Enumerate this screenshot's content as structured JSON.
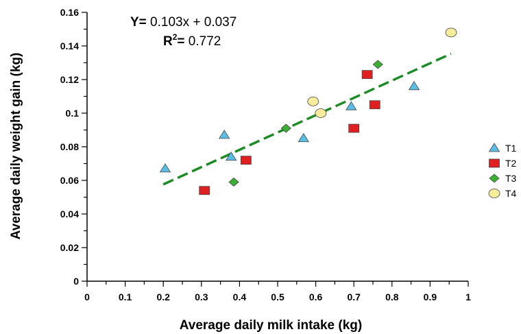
{
  "chart_data": {
    "type": "scatter",
    "title": "",
    "xlabel": "Average daily milk intake (kg)",
    "ylabel": "Average daily weight gain (kg)",
    "xlim": [
      0,
      1
    ],
    "ylim": [
      0,
      0.16
    ],
    "x_ticks": [
      "0",
      "0.1",
      "0.2",
      "0.3",
      "0.4",
      "0.5",
      "0.6",
      "0.7",
      "0.8",
      "0.9",
      "1"
    ],
    "y_ticks": [
      "0",
      "0.02",
      "0.04",
      "0.06",
      "0.08",
      "0.1",
      "0.12",
      "0.14",
      "0.16"
    ],
    "grid": false,
    "legend_position": "right",
    "series": [
      {
        "name": "T1",
        "marker": "triangle",
        "color": "#5bbce4",
        "points": [
          [
            0.205,
            0.067
          ],
          [
            0.36,
            0.087
          ],
          [
            0.378,
            0.074
          ],
          [
            0.568,
            0.085
          ],
          [
            0.693,
            0.104
          ],
          [
            0.858,
            0.116
          ]
        ]
      },
      {
        "name": "T2",
        "marker": "square",
        "color": "#e02020",
        "points": [
          [
            0.308,
            0.054
          ],
          [
            0.417,
            0.072
          ],
          [
            0.7,
            0.091
          ],
          [
            0.735,
            0.123
          ],
          [
            0.755,
            0.105
          ]
        ]
      },
      {
        "name": "T3",
        "marker": "diamond",
        "color": "#3cb034",
        "points": [
          [
            0.385,
            0.059
          ],
          [
            0.522,
            0.091
          ],
          [
            0.763,
            0.129
          ]
        ]
      },
      {
        "name": "T4",
        "marker": "circle",
        "color": "#f7eb9c",
        "points": [
          [
            0.593,
            0.107
          ],
          [
            0.613,
            0.1
          ],
          [
            0.955,
            0.148
          ]
        ]
      }
    ],
    "trendline": {
      "color": "#1e8c26",
      "slope": 0.103,
      "intercept": 0.037,
      "x_start": 0.2,
      "x_end": 0.955
    },
    "annotations": {
      "equation_prefix": "Y=",
      "equation_value": " 0.103x + 0.037",
      "r2_prefix": "R",
      "r2_sup": "2",
      "r2_eq": "=",
      "r2_value": " 0.772"
    }
  }
}
